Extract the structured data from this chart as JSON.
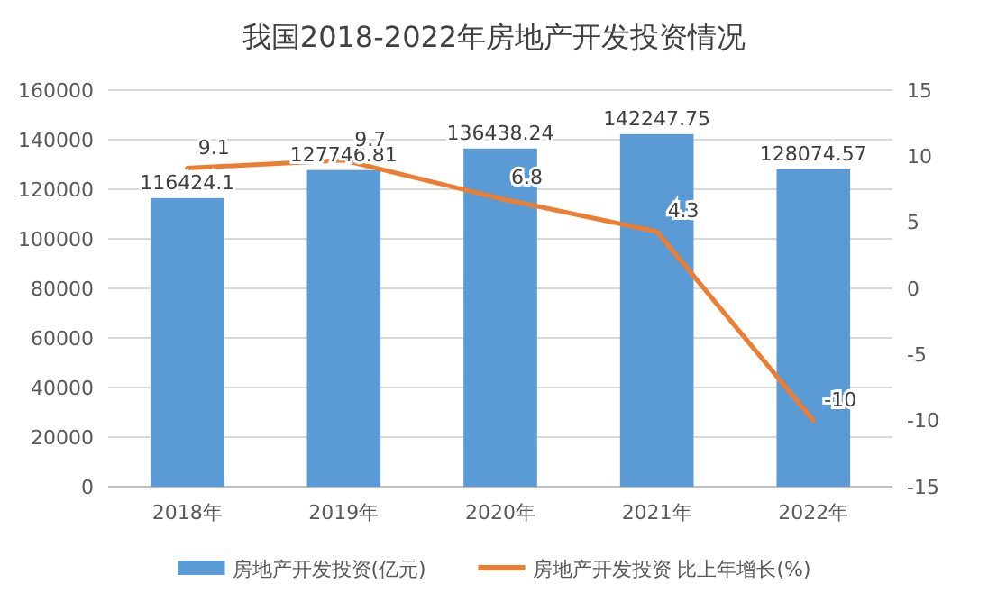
{
  "chart_data": {
    "type": "bar",
    "title": "我国2018-2022年房地产开发投资情况",
    "categories": [
      "2018年",
      "2019年",
      "2020年",
      "2021年",
      "2022年"
    ],
    "series": [
      {
        "name": "房地产开发投资(亿元)",
        "color": "#5b9bd5",
        "values": [
          116424.1,
          127746.81,
          136438.24,
          142247.75,
          128074.57
        ]
      },
      {
        "name": "房地产开发投资 比上年增长(%)",
        "type": "line",
        "axis": "y2",
        "color": "#ed7d31",
        "values": [
          9.1,
          9.7,
          6.8,
          4.3,
          -10
        ]
      }
    ],
    "ylim": [
      0,
      160000
    ],
    "yticks": [
      0,
      20000,
      40000,
      60000,
      80000,
      100000,
      120000,
      140000,
      160000
    ],
    "y2lim": [
      -15,
      15
    ],
    "y2ticks": [
      -15,
      -10,
      -5,
      0,
      5,
      10,
      15
    ],
    "grid": "y",
    "legend": "bottom",
    "data_labels": true,
    "marker": "none"
  }
}
